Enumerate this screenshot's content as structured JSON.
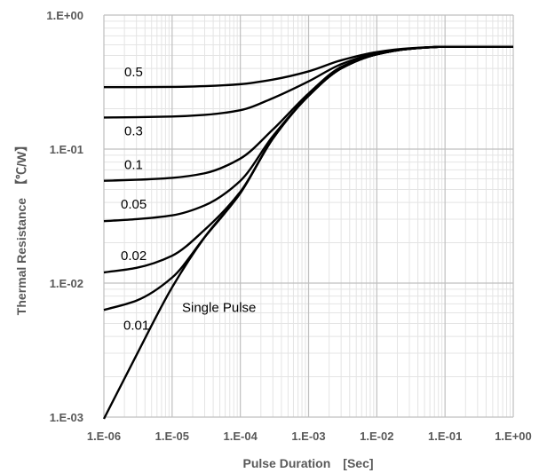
{
  "chart_data": {
    "type": "line",
    "title": "",
    "xlabel": "Pulse Duration　[Sec]",
    "ylabel": "Thermal Resistance　【℃/W】",
    "x_scale": "log",
    "y_scale": "log",
    "xlim": [
      1e-06,
      1
    ],
    "ylim": [
      0.001,
      1
    ],
    "x_tick_labels": [
      "1.E-06",
      "1.E-05",
      "1.E-04",
      "1.E-03",
      "1.E-02",
      "1.E-01",
      "1.E+00"
    ],
    "y_tick_labels": [
      "1.E-03",
      "1.E-02",
      "1.E-01",
      "1.E+00"
    ],
    "grid": true,
    "legend": "none",
    "colors": {
      "line": "#000000",
      "major_grid": "#bfbfbf",
      "minor_grid": "#e4e4e4",
      "text": "#595959"
    },
    "series": [
      {
        "name": "Single Pulse",
        "x": [
          1e-06,
          3e-06,
          1e-05,
          3e-05,
          0.0001,
          0.0003,
          0.001,
          0.003,
          0.01,
          0.03,
          0.1,
          1
        ],
        "y": [
          0.00097,
          0.0029,
          0.0093,
          0.022,
          0.047,
          0.12,
          0.25,
          0.4,
          0.51,
          0.56,
          0.58,
          0.58
        ]
      },
      {
        "name": "0.01",
        "x": [
          1e-06,
          3e-06,
          1e-05,
          3e-05,
          0.0001,
          0.0003,
          0.001,
          0.003,
          0.01,
          0.03,
          0.1,
          1
        ],
        "y": [
          0.0063,
          0.0074,
          0.011,
          0.022,
          0.047,
          0.12,
          0.25,
          0.4,
          0.51,
          0.56,
          0.58,
          0.58
        ]
      },
      {
        "name": "0.02",
        "x": [
          1e-06,
          3e-06,
          1e-05,
          3e-05,
          0.0001,
          0.0003,
          0.001,
          0.003,
          0.01,
          0.03,
          0.1,
          1
        ],
        "y": [
          0.012,
          0.013,
          0.016,
          0.025,
          0.048,
          0.12,
          0.25,
          0.4,
          0.51,
          0.56,
          0.58,
          0.58
        ]
      },
      {
        "name": "0.05",
        "x": [
          1e-06,
          3e-06,
          1e-05,
          3e-05,
          0.0001,
          0.0003,
          0.001,
          0.003,
          0.01,
          0.03,
          0.1,
          1
        ],
        "y": [
          0.029,
          0.03,
          0.032,
          0.038,
          0.058,
          0.125,
          0.25,
          0.4,
          0.51,
          0.56,
          0.58,
          0.58
        ]
      },
      {
        "name": "0.1",
        "x": [
          1e-06,
          3e-06,
          1e-05,
          3e-05,
          0.0001,
          0.0003,
          0.001,
          0.003,
          0.01,
          0.03,
          0.1,
          1
        ],
        "y": [
          0.058,
          0.059,
          0.061,
          0.066,
          0.085,
          0.14,
          0.26,
          0.41,
          0.51,
          0.56,
          0.58,
          0.58
        ]
      },
      {
        "name": "0.3",
        "x": [
          1e-06,
          3e-06,
          1e-05,
          3e-05,
          0.0001,
          0.0003,
          0.001,
          0.003,
          0.01,
          0.03,
          0.1,
          1
        ],
        "y": [
          0.172,
          0.173,
          0.175,
          0.18,
          0.195,
          0.24,
          0.32,
          0.43,
          0.52,
          0.56,
          0.58,
          0.58
        ]
      },
      {
        "name": "0.5",
        "x": [
          1e-06,
          3e-06,
          1e-05,
          3e-05,
          0.0001,
          0.0003,
          0.001,
          0.003,
          0.01,
          0.03,
          0.1,
          1
        ],
        "y": [
          0.29,
          0.29,
          0.291,
          0.295,
          0.305,
          0.33,
          0.38,
          0.46,
          0.53,
          0.565,
          0.58,
          0.58
        ]
      }
    ]
  }
}
